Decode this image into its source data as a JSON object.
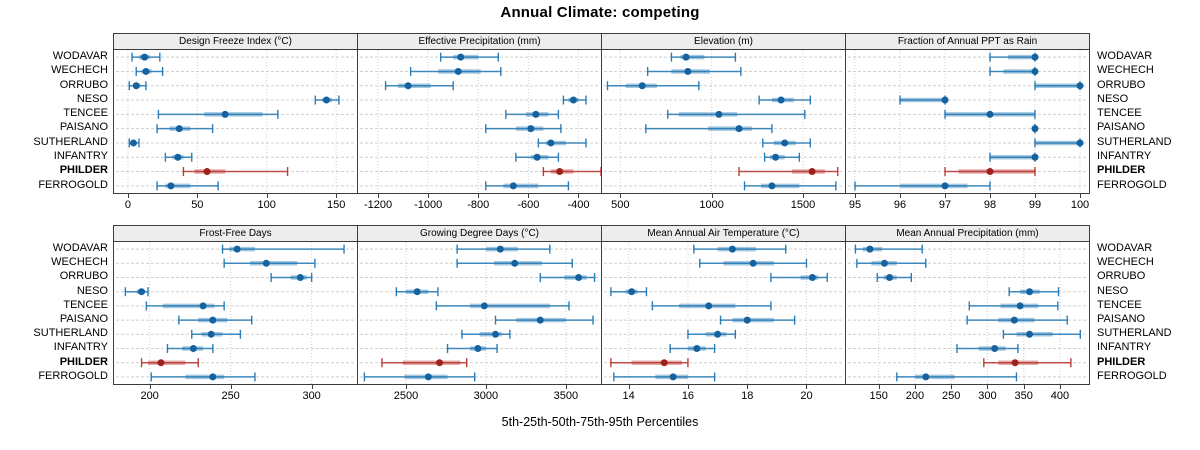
{
  "title": "Annual Climate: competing",
  "caption": "5th-25th-50th-75th-95th Percentiles",
  "sites": [
    "WODAVAR",
    "WECHECH",
    "ORRUBO",
    "NESO",
    "TENCEE",
    "PAISANO",
    "SUTHERLAND",
    "INFANTRY",
    "PHILDER",
    "FERROGOLD"
  ],
  "highlight_site": "PHILDER",
  "colors": {
    "blue": "#2077b4",
    "blue_dot": "#15629f",
    "red": "#b8332c",
    "red_dot": "#9e211d",
    "grid": "#cfcfcf",
    "border": "#3c3c3c",
    "strip_bg": "#ededed",
    "text": "#000000"
  },
  "percentile_labels": [
    "5th",
    "25th",
    "50th",
    "75th",
    "95th"
  ],
  "chart_data": [
    {
      "type": "dot-interval",
      "title": "Design Freeze Index (°C)",
      "xlim": [
        -10,
        165
      ],
      "ticks": [
        0,
        50,
        100,
        150
      ],
      "values": [
        [
          3,
          8,
          12,
          16,
          23
        ],
        [
          6,
          10,
          13,
          17,
          25
        ],
        [
          1,
          4,
          6,
          9,
          13
        ],
        [
          135,
          140,
          143,
          147,
          152
        ],
        [
          22,
          55,
          70,
          97,
          108
        ],
        [
          21,
          30,
          37,
          45,
          61
        ],
        [
          1,
          3,
          4,
          6,
          8
        ],
        [
          27,
          32,
          36,
          40,
          46
        ],
        [
          40,
          48,
          57,
          70,
          115
        ],
        [
          21,
          27,
          31,
          45,
          65
        ]
      ]
    },
    {
      "type": "dot-interval",
      "title": "Effective Precipitation (mm)",
      "xlim": [
        -1280,
        -310
      ],
      "ticks": [
        -1200,
        -1000,
        -800,
        -600,
        -400
      ],
      "values": [
        [
          -950,
          -900,
          -870,
          -800,
          -720
        ],
        [
          -1070,
          -960,
          -880,
          -790,
          -710
        ],
        [
          -1170,
          -1120,
          -1080,
          -990,
          -900
        ],
        [
          -460,
          -440,
          -420,
          -400,
          -370
        ],
        [
          -690,
          -610,
          -570,
          -520,
          -480
        ],
        [
          -770,
          -650,
          -590,
          -540,
          -470
        ],
        [
          -560,
          -530,
          -510,
          -450,
          -370
        ],
        [
          -650,
          -590,
          -565,
          -520,
          -480
        ],
        [
          -540,
          -510,
          -475,
          -420,
          -310
        ],
        [
          -770,
          -700,
          -660,
          -560,
          -440
        ]
      ]
    },
    {
      "type": "dot-interval",
      "title": "Elevation (m)",
      "xlim": [
        400,
        1730
      ],
      "ticks": [
        500,
        1000,
        1500
      ],
      "values": [
        [
          780,
          830,
          860,
          960,
          1130
        ],
        [
          650,
          780,
          870,
          990,
          1160
        ],
        [
          430,
          530,
          620,
          700,
          930
        ],
        [
          1260,
          1330,
          1380,
          1450,
          1540
        ],
        [
          760,
          820,
          1040,
          1140,
          1510
        ],
        [
          640,
          980,
          1150,
          1220,
          1330
        ],
        [
          1280,
          1340,
          1400,
          1460,
          1540
        ],
        [
          1290,
          1320,
          1350,
          1400,
          1480
        ],
        [
          1150,
          1440,
          1550,
          1620,
          1690
        ],
        [
          1180,
          1270,
          1330,
          1480,
          1680
        ]
      ]
    },
    {
      "type": "dot-interval",
      "title": "Fraction of Annual PPT as Rain",
      "xlim": [
        94.8,
        100.2
      ],
      "ticks": [
        95,
        96,
        97,
        98,
        99,
        100
      ],
      "values": [
        [
          98,
          98.4,
          99,
          99,
          99
        ],
        [
          98,
          98.3,
          99,
          99,
          99
        ],
        [
          99,
          99,
          100,
          100,
          100
        ],
        [
          96,
          96,
          97,
          97,
          97
        ],
        [
          97,
          97,
          98,
          99,
          99
        ],
        [
          99,
          99,
          99,
          99,
          99
        ],
        [
          99,
          99,
          100,
          100,
          100
        ],
        [
          98,
          98,
          99,
          99,
          99
        ],
        [
          97,
          97.3,
          98,
          99,
          99
        ],
        [
          95,
          96,
          97,
          97.5,
          98
        ]
      ]
    },
    {
      "type": "dot-interval",
      "title": "Frost-Free Days",
      "xlim": [
        178,
        328
      ],
      "ticks": [
        200,
        250,
        300
      ],
      "values": [
        [
          245,
          249,
          254,
          265,
          320
        ],
        [
          246,
          262,
          272,
          291,
          302
        ],
        [
          275,
          287,
          293,
          297,
          300
        ],
        [
          185,
          192,
          195,
          197,
          199
        ],
        [
          198,
          208,
          233,
          240,
          246
        ],
        [
          218,
          230,
          239,
          248,
          263
        ],
        [
          226,
          232,
          238,
          245,
          256
        ],
        [
          211,
          220,
          227,
          233,
          239
        ],
        [
          195,
          199,
          207,
          222,
          230
        ],
        [
          201,
          222,
          239,
          246,
          265
        ]
      ]
    },
    {
      "type": "dot-interval",
      "title": "Growing Degree Days (°C)",
      "xlim": [
        2200,
        3720
      ],
      "ticks": [
        2500,
        3000,
        3500
      ],
      "values": [
        [
          2820,
          3000,
          3090,
          3200,
          3400
        ],
        [
          2820,
          3050,
          3180,
          3350,
          3540
        ],
        [
          3340,
          3490,
          3580,
          3630,
          3680
        ],
        [
          2440,
          2500,
          2570,
          2640,
          2700
        ],
        [
          2690,
          2900,
          2990,
          3400,
          3520
        ],
        [
          3060,
          3190,
          3340,
          3500,
          3670
        ],
        [
          2850,
          2960,
          3060,
          3100,
          3150
        ],
        [
          2760,
          2900,
          2950,
          3000,
          3070
        ],
        [
          2350,
          2480,
          2710,
          2840,
          2880
        ],
        [
          2240,
          2490,
          2640,
          2760,
          2930
        ]
      ]
    },
    {
      "type": "dot-interval",
      "title": "Mean Annual Air Temperature (°C)",
      "xlim": [
        13.1,
        21.3
      ],
      "ticks": [
        14,
        16,
        18,
        20
      ],
      "values": [
        [
          16.2,
          17.0,
          17.5,
          18.3,
          19.3
        ],
        [
          16.4,
          17.2,
          18.2,
          18.9,
          20.0
        ],
        [
          18.8,
          19.8,
          20.2,
          20.4,
          20.7
        ],
        [
          13.4,
          13.9,
          14.1,
          14.3,
          14.6
        ],
        [
          14.8,
          15.7,
          16.7,
          17.6,
          18.8
        ],
        [
          17.1,
          17.5,
          18.0,
          18.9,
          19.6
        ],
        [
          16.0,
          16.6,
          17.0,
          17.3,
          17.6
        ],
        [
          15.4,
          16.0,
          16.3,
          16.6,
          16.9
        ],
        [
          13.4,
          14.1,
          15.2,
          15.8,
          16.0
        ],
        [
          13.5,
          14.9,
          15.5,
          16.0,
          16.9
        ]
      ]
    },
    {
      "type": "dot-interval",
      "title": "Mean Annual Precipitation (mm)",
      "xlim": [
        105,
        440
      ],
      "ticks": [
        150,
        200,
        250,
        300,
        350,
        400
      ],
      "values": [
        [
          118,
          128,
          138,
          155,
          210
        ],
        [
          120,
          140,
          158,
          175,
          215
        ],
        [
          148,
          157,
          165,
          175,
          195
        ],
        [
          330,
          345,
          358,
          372,
          398
        ],
        [
          275,
          318,
          345,
          370,
          397
        ],
        [
          272,
          315,
          337,
          365,
          410
        ],
        [
          322,
          340,
          358,
          390,
          428
        ],
        [
          258,
          288,
          310,
          325,
          342
        ],
        [
          295,
          315,
          338,
          370,
          415
        ],
        [
          175,
          200,
          215,
          255,
          340
        ]
      ]
    }
  ]
}
